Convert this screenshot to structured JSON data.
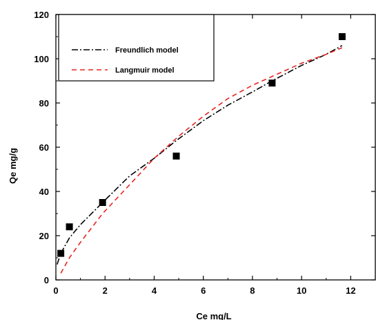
{
  "chart_data": {
    "type": "scatter",
    "xlabel": "Ce mg/L",
    "ylabel": "Qe mg/g",
    "xlim": [
      0,
      13
    ],
    "ylim": [
      0,
      120
    ],
    "x_ticks": [
      0,
      2,
      4,
      6,
      8,
      10,
      12
    ],
    "y_ticks": [
      0,
      20,
      40,
      60,
      80,
      100,
      120
    ],
    "grid": false,
    "legend_position": "top-left",
    "series": [
      {
        "name": "",
        "kind": "markers",
        "marker": "square",
        "color": "#000000",
        "x": [
          0.2,
          0.55,
          1.9,
          4.9,
          8.8,
          11.65
        ],
        "y": [
          12,
          24,
          35,
          56,
          89,
          110
        ]
      },
      {
        "name": "Freundlich model",
        "kind": "line",
        "dash": "dashdot",
        "color": "#000000",
        "x": [
          0.05,
          0.2,
          0.55,
          1.0,
          1.9,
          3.0,
          4.0,
          4.9,
          6.0,
          7.0,
          8.0,
          8.8,
          10.0,
          11.0,
          11.65
        ],
        "y": [
          7,
          12,
          19,
          25,
          35,
          47,
          55,
          63,
          72,
          79,
          85,
          90,
          97,
          102,
          106
        ]
      },
      {
        "name": "Langmuir model",
        "kind": "line",
        "dash": "dashed",
        "color": "#e8231f",
        "x": [
          0.2,
          0.55,
          1.0,
          1.9,
          3.0,
          4.0,
          5.0,
          6.0,
          7.0,
          8.0,
          8.8,
          10.0,
          11.0,
          11.65
        ],
        "y": [
          3,
          10,
          17,
          30,
          43,
          55,
          65,
          74,
          82,
          88,
          92,
          98,
          102,
          105
        ]
      }
    ]
  }
}
